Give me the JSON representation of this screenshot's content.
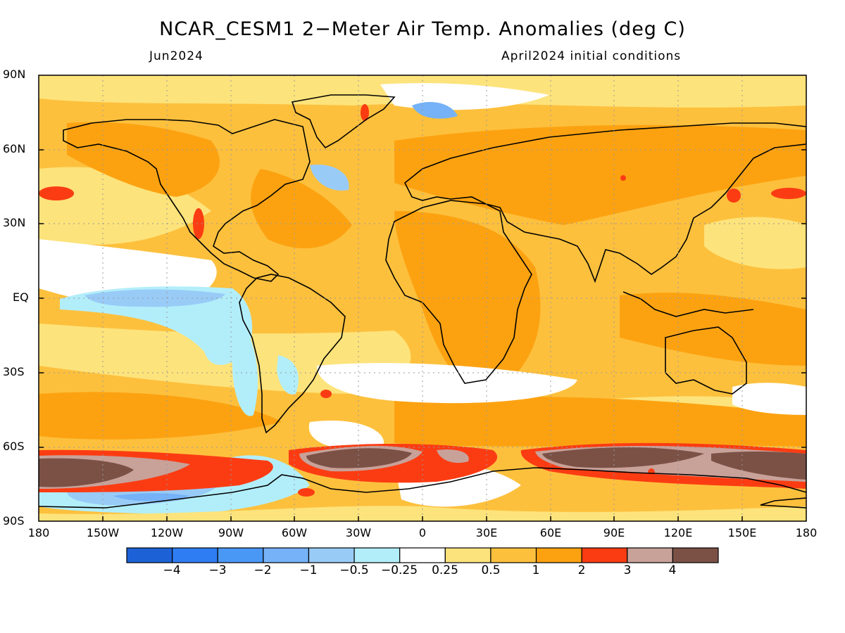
{
  "title": "NCAR_CESM1 2−Meter Air Temp. Anomalies (deg C)",
  "subtitle_left": "Jun2024",
  "subtitle_right": "April2024 initial conditions",
  "lat_labels": [
    "90N",
    "60N",
    "30N",
    "EQ",
    "30S",
    "60S",
    "90S"
  ],
  "lon_labels": [
    "180",
    "150W",
    "120W",
    "90W",
    "60W",
    "30W",
    "0",
    "30E",
    "60E",
    "90E",
    "120E",
    "150E",
    "180"
  ],
  "colorbar": {
    "colors": [
      "#1c62d6",
      "#2f7df2",
      "#4a98f6",
      "#75b2f7",
      "#99cbf7",
      "#b2eefa",
      "#ffffff",
      "#fde37b",
      "#fdc03d",
      "#fca211",
      "#fb3c13",
      "#c8a199",
      "#7b5146"
    ],
    "labels": [
      "−4",
      "−3",
      "−2",
      "−1",
      "−0.5",
      "−0.25",
      "0.25",
      "0.5",
      "1",
      "2",
      "3",
      "4"
    ]
  }
}
